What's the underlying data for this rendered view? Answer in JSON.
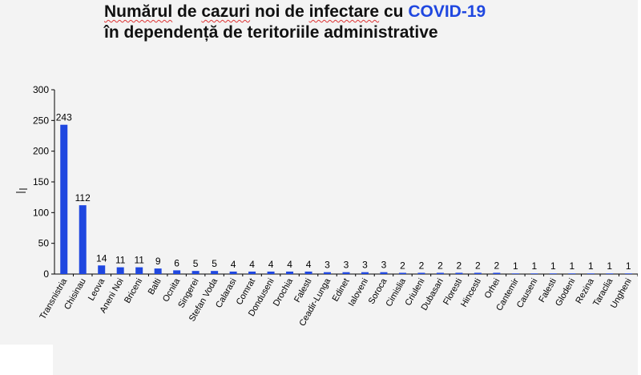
{
  "title": {
    "line1_part1": "Numărul",
    "line1_part2": " de ",
    "line1_part3": "cazuri",
    "line1_part4": " noi de ",
    "line1_part5": "infectare",
    "line1_part6": " cu ",
    "line1_highlight": "COVID-19",
    "line2": "în dependență de teritoriile administrative"
  },
  "colors": {
    "bar": "#1f47e0",
    "highlight": "#1f47e0",
    "background": "#f3f3f3"
  },
  "chart_data": {
    "type": "bar",
    "title": "Numărul de cazuri noi de infectare cu COVID-19 în dependență de teritoriile administrative",
    "xlabel": "",
    "ylabel": "",
    "ylim": [
      0,
      300
    ],
    "yticks": [
      0,
      50,
      100,
      150,
      200,
      250,
      300
    ],
    "grid": false,
    "legend": "none",
    "categories": [
      "Transnistria",
      "Chisinau",
      "Leova",
      "Aneni Noi",
      "Briceni",
      "Balti",
      "Ocnita",
      "Singerei",
      "Stefan Voda",
      "Calarasi",
      "Comrat",
      "Donduseni",
      "Drochia",
      "Falesti",
      "Ceadir-Lunga",
      "Edinet",
      "Ialoveni",
      "Soroca",
      "Cimislia",
      "Criuleni",
      "Dubasari",
      "Floresti",
      "Hincesti",
      "Orhei",
      "Cantemir",
      "Causeni",
      "Falesti",
      "Glodeni",
      "Rezina",
      "Taraclia",
      "Ungheni"
    ],
    "values": [
      243,
      112,
      14,
      11,
      11,
      9,
      6,
      5,
      5,
      4,
      4,
      4,
      4,
      4,
      3,
      3,
      3,
      3,
      2,
      2,
      2,
      2,
      2,
      2,
      1,
      1,
      1,
      1,
      1,
      1,
      1
    ]
  }
}
